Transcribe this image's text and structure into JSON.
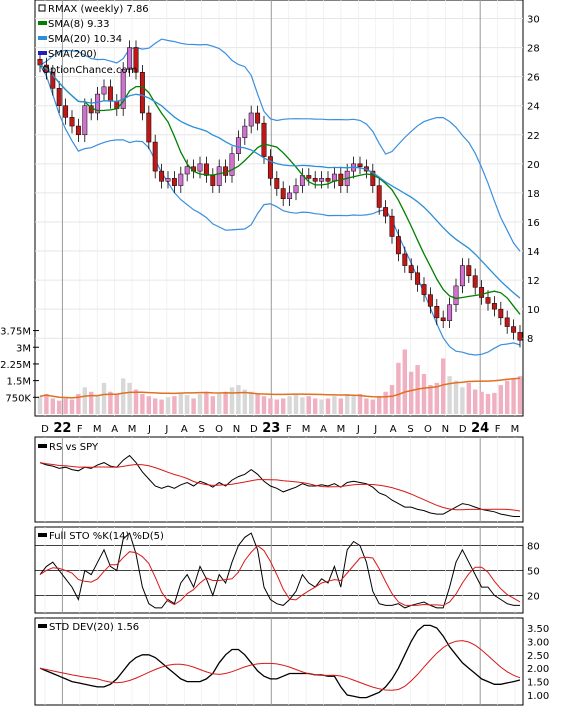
{
  "chart_data": {
    "type": "line",
    "symbol": "RMAX",
    "legend": {
      "title": "RMAX (weekly) 7.86",
      "sma8": "SMA(8) 9.33",
      "sma20": "SMA(20) 10.34",
      "sma200": "SMA(200)",
      "watermark": "OptionChance.com"
    },
    "colors": {
      "sma8": "#008000",
      "sma20": "#2a8fd8",
      "band": "#3a8fe0",
      "up_candle": "#d070d0",
      "down_candle": "#c01818",
      "rs_line": "#000000",
      "rs_sma": "#d81818",
      "volume_bar": "#f0b0c0",
      "volume_sma": "#e07020"
    },
    "x_axis": {
      "labels": [
        "D",
        "22",
        "F",
        "M",
        "A",
        "M",
        "J",
        "J",
        "A",
        "S",
        "O",
        "N",
        "D",
        "23",
        "F",
        "M",
        "A",
        "M",
        "J",
        "J",
        "A",
        "S",
        "O",
        "N",
        "D",
        "24",
        "F",
        "M"
      ]
    },
    "price": {
      "y_ticks": [
        "30",
        "28",
        "26",
        "24",
        "22",
        "20",
        "18",
        "16",
        "14",
        "12",
        "10",
        "8"
      ],
      "ylim": [
        6.5,
        31
      ],
      "close": [
        26.8,
        26.3,
        25.2,
        24.0,
        23.2,
        22.6,
        22.0,
        24.0,
        23.5,
        24.8,
        25.3,
        24.3,
        23.8,
        26.5,
        28.0,
        26.3,
        23.5,
        21.5,
        19.5,
        18.8,
        19.0,
        18.5,
        19.3,
        19.8,
        19.5,
        20.0,
        19.2,
        18.5,
        19.8,
        19.2,
        20.7,
        21.8,
        22.6,
        23.5,
        22.8,
        20.5,
        19.0,
        18.3,
        17.6,
        18.0,
        18.5,
        19.2,
        19.0,
        18.8,
        19.0,
        18.8,
        19.3,
        18.5,
        19.5,
        20.0,
        19.8,
        19.5,
        18.5,
        17.0,
        16.4,
        15.0,
        13.8,
        13.0,
        12.5,
        11.7,
        11.0,
        10.2,
        9.4,
        9.2,
        10.3,
        11.6,
        13.0,
        12.3,
        11.5,
        10.8,
        10.4,
        10.0,
        9.4,
        8.8,
        8.4,
        7.86
      ]
    },
    "volume": {
      "y_ticks": [
        "3.75M",
        "3M",
        "2.25M",
        "1.5M",
        "750K"
      ],
      "ylim": [
        0,
        4000000
      ],
      "values": [
        800000,
        900000,
        700000,
        600000,
        700000,
        650000,
        900000,
        1200000,
        1000000,
        800000,
        1400000,
        1000000,
        900000,
        1600000,
        1400000,
        1100000,
        900000,
        800000,
        700000,
        650000,
        750000,
        800000,
        900000,
        850000,
        700000,
        900000,
        1000000,
        800000,
        900000,
        1000000,
        1200000,
        1300000,
        1100000,
        1000000,
        900000,
        800000,
        700000,
        650000,
        700000,
        800000,
        900000,
        750000,
        800000,
        700000,
        650000,
        700000,
        800000,
        700000,
        900000,
        850000,
        900000,
        700000,
        650000,
        800000,
        1000000,
        1300000,
        2300000,
        2900000,
        1900000,
        2200000,
        1800000,
        1300000,
        1400000,
        2500000,
        1700000,
        1500000,
        1200000,
        1400000,
        1100000,
        1000000,
        900000,
        950000,
        1300000,
        1500000,
        1600000,
        1700000
      ]
    },
    "rs": {
      "title": "RS vs SPY",
      "line": [
        60,
        58,
        57,
        55,
        56,
        54,
        53,
        56,
        55,
        58,
        60,
        57,
        56,
        62,
        66,
        60,
        52,
        46,
        40,
        38,
        40,
        38,
        41,
        43,
        40,
        44,
        42,
        39,
        43,
        40,
        45,
        48,
        50,
        54,
        50,
        44,
        40,
        38,
        35,
        37,
        39,
        42,
        40,
        40,
        41,
        40,
        42,
        39,
        43,
        44,
        43,
        42,
        39,
        34,
        32,
        28,
        25,
        22,
        22,
        20,
        19,
        17,
        16,
        16,
        19,
        22,
        25,
        24,
        22,
        20,
        19,
        18,
        16,
        15,
        14,
        14
      ]
    },
    "stochastic": {
      "title": "Full STO %K(14) %D(5)",
      "y_ticks": [
        "80",
        "50",
        "20"
      ],
      "ylim": [
        0,
        100
      ],
      "k": [
        45,
        55,
        60,
        50,
        40,
        30,
        15,
        50,
        45,
        60,
        75,
        55,
        50,
        88,
        95,
        70,
        30,
        10,
        5,
        5,
        15,
        10,
        35,
        45,
        30,
        55,
        40,
        20,
        45,
        35,
        60,
        80,
        90,
        95,
        75,
        30,
        15,
        10,
        8,
        15,
        25,
        45,
        35,
        30,
        40,
        35,
        55,
        30,
        75,
        85,
        80,
        60,
        25,
        10,
        8,
        8,
        10,
        5,
        8,
        10,
        12,
        8,
        5,
        5,
        30,
        60,
        75,
        60,
        45,
        30,
        30,
        20,
        15,
        10,
        8,
        8
      ]
    },
    "stddev": {
      "title": "STD DEV(20) 1.56",
      "y_ticks": [
        "3.50",
        "3.00",
        "2.50",
        "2.00",
        "1.50",
        "1.00"
      ],
      "ylim": [
        0.7,
        3.8
      ],
      "values": [
        2.0,
        1.9,
        1.8,
        1.7,
        1.6,
        1.5,
        1.45,
        1.4,
        1.35,
        1.3,
        1.3,
        1.4,
        1.6,
        1.9,
        2.2,
        2.4,
        2.5,
        2.5,
        2.4,
        2.2,
        2.0,
        1.8,
        1.6,
        1.5,
        1.5,
        1.5,
        1.6,
        1.8,
        2.2,
        2.5,
        2.7,
        2.7,
        2.5,
        2.2,
        1.9,
        1.7,
        1.6,
        1.6,
        1.7,
        1.8,
        1.8,
        1.8,
        1.8,
        1.75,
        1.75,
        1.7,
        1.7,
        1.3,
        1.0,
        0.95,
        0.9,
        0.9,
        1.0,
        1.1,
        1.3,
        1.6,
        2.0,
        2.5,
        3.0,
        3.4,
        3.6,
        3.6,
        3.5,
        3.2,
        2.8,
        2.5,
        2.2,
        2.0,
        1.8,
        1.6,
        1.5,
        1.4,
        1.4,
        1.45,
        1.5,
        1.56
      ]
    }
  }
}
